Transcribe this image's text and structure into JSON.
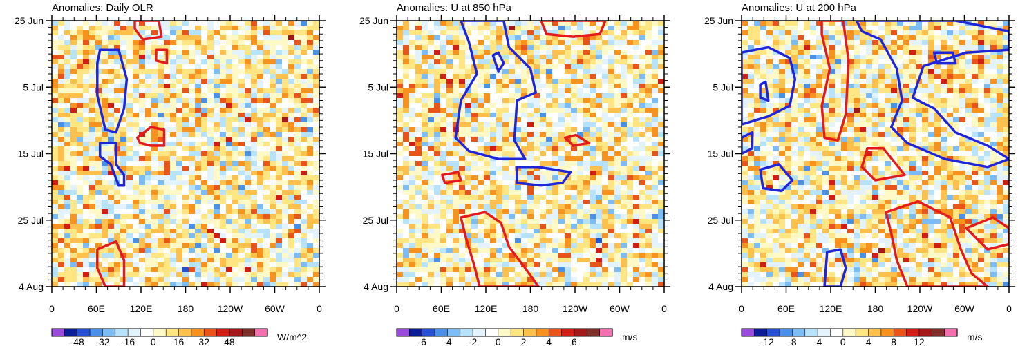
{
  "palette": [
    "#9b4bdc",
    "#0c1e96",
    "#2650d2",
    "#4a90e6",
    "#7cbcf4",
    "#b7e2fb",
    "#e3f3fd",
    "#ffffff",
    "#fff9c8",
    "#ffe682",
    "#fdc04c",
    "#f7921f",
    "#e8541a",
    "#d21d14",
    "#a31818",
    "#7e2f2a",
    "#f26fb0"
  ],
  "contour_colors": {
    "positive": "#e41a1c",
    "negative": "#1f26d9"
  },
  "panels": [
    {
      "title": "Anomalies: Daily OLR",
      "x_ticks": [
        "0",
        "60E",
        "120E",
        "180",
        "120W",
        "60W",
        "0"
      ],
      "y_ticks": [
        "25 Jun",
        "5 Jul",
        "15 Jul",
        "25 Jul",
        "4 Aug"
      ],
      "colorbar_labels": [
        "-48",
        "-32",
        "-16",
        "0",
        "16",
        "32",
        "48"
      ],
      "units": "W/m^2",
      "seed": 11,
      "neg_contours": [
        [
          [
            0.18,
            0.11
          ],
          [
            0.25,
            0.11
          ],
          [
            0.28,
            0.22
          ],
          [
            0.27,
            0.33
          ],
          [
            0.24,
            0.42
          ],
          [
            0.2,
            0.41
          ],
          [
            0.17,
            0.28
          ],
          [
            0.17,
            0.16
          ]
        ],
        [
          [
            0.18,
            0.46
          ],
          [
            0.24,
            0.46
          ],
          [
            0.24,
            0.54
          ],
          [
            0.27,
            0.58
          ],
          [
            0.27,
            0.62
          ],
          [
            0.25,
            0.62
          ],
          [
            0.22,
            0.54
          ],
          [
            0.18,
            0.51
          ]
        ]
      ],
      "pos_contours": [
        [
          [
            0.31,
            0.0
          ],
          [
            0.4,
            0.0
          ],
          [
            0.41,
            0.06
          ],
          [
            0.34,
            0.07
          ],
          [
            0.31,
            0.03
          ]
        ],
        [
          [
            0.39,
            0.11
          ],
          [
            0.43,
            0.11
          ],
          [
            0.43,
            0.16
          ],
          [
            0.39,
            0.15
          ]
        ],
        [
          [
            0.32,
            0.44
          ],
          [
            0.37,
            0.4
          ],
          [
            0.42,
            0.41
          ],
          [
            0.42,
            0.47
          ],
          [
            0.37,
            0.47
          ],
          [
            0.33,
            0.46
          ]
        ],
        [
          [
            0.17,
            0.86
          ],
          [
            0.24,
            0.83
          ],
          [
            0.27,
            0.9
          ],
          [
            0.27,
            1.0
          ],
          [
            0.2,
            1.0
          ],
          [
            0.17,
            0.93
          ]
        ]
      ]
    },
    {
      "title": "Anomalies: U at 850 hPa",
      "x_ticks": [
        "0",
        "60E",
        "120E",
        "180",
        "120W",
        "60W",
        "0"
      ],
      "y_ticks": [
        "25 Jun",
        "5 Jul",
        "15 Jul",
        "25 Jul",
        "4 Aug"
      ],
      "colorbar_labels": [
        "-6",
        "-4",
        "-2",
        "0",
        "2",
        "4",
        "6"
      ],
      "units": "m/s",
      "seed": 23,
      "neg_contours": [
        [
          [
            0.24,
            0.0
          ],
          [
            0.4,
            0.0
          ],
          [
            0.42,
            0.1
          ],
          [
            0.5,
            0.18
          ],
          [
            0.52,
            0.27
          ],
          [
            0.45,
            0.3
          ],
          [
            0.44,
            0.45
          ],
          [
            0.48,
            0.52
          ],
          [
            0.38,
            0.52
          ],
          [
            0.27,
            0.49
          ],
          [
            0.22,
            0.44
          ],
          [
            0.24,
            0.3
          ],
          [
            0.3,
            0.2
          ],
          [
            0.27,
            0.08
          ]
        ],
        [
          [
            0.36,
            0.13
          ],
          [
            0.38,
            0.12
          ],
          [
            0.4,
            0.16
          ],
          [
            0.38,
            0.19
          ]
        ],
        [
          [
            0.45,
            0.55
          ],
          [
            0.53,
            0.55
          ],
          [
            0.65,
            0.57
          ],
          [
            0.62,
            0.61
          ],
          [
            0.54,
            0.62
          ],
          [
            0.45,
            0.61
          ]
        ]
      ],
      "pos_contours": [
        [
          [
            0.54,
            0.0
          ],
          [
            0.78,
            0.0
          ],
          [
            0.76,
            0.05
          ],
          [
            0.66,
            0.06
          ],
          [
            0.56,
            0.05
          ]
        ],
        [
          [
            0.63,
            0.44
          ],
          [
            0.67,
            0.43
          ],
          [
            0.72,
            0.46
          ],
          [
            0.66,
            0.47
          ]
        ],
        [
          [
            0.17,
            0.58
          ],
          [
            0.23,
            0.57
          ],
          [
            0.24,
            0.6
          ],
          [
            0.18,
            0.61
          ]
        ],
        [
          [
            0.24,
            0.74
          ],
          [
            0.33,
            0.72
          ],
          [
            0.39,
            0.76
          ],
          [
            0.42,
            0.85
          ],
          [
            0.48,
            0.93
          ],
          [
            0.53,
            1.0
          ],
          [
            0.31,
            1.0
          ],
          [
            0.29,
            0.92
          ],
          [
            0.26,
            0.82
          ]
        ]
      ]
    },
    {
      "title": "Anomalies: U at 200 hPa",
      "x_ticks": [
        "0",
        "60E",
        "120E",
        "180",
        "120W",
        "60W",
        "0"
      ],
      "y_ticks": [
        "25 Jun",
        "5 Jul",
        "15 Jul",
        "25 Jul",
        "4 Aug"
      ],
      "colorbar_labels": [
        "-12",
        "-8",
        "-4",
        "0",
        "4",
        "8",
        "12"
      ],
      "units": "m/s",
      "seed": 41,
      "neg_contours": [
        [
          [
            0.0,
            0.12
          ],
          [
            0.1,
            0.1
          ],
          [
            0.18,
            0.14
          ],
          [
            0.2,
            0.22
          ],
          [
            0.18,
            0.32
          ],
          [
            0.1,
            0.36
          ],
          [
            0.0,
            0.39
          ]
        ],
        [
          [
            0.43,
            0.0
          ],
          [
            0.8,
            0.0
          ],
          [
            1.0,
            0.04
          ],
          [
            1.0,
            0.11
          ],
          [
            0.84,
            0.12
          ],
          [
            0.68,
            0.17
          ],
          [
            0.64,
            0.29
          ],
          [
            0.72,
            0.33
          ],
          [
            0.8,
            0.42
          ],
          [
            0.92,
            0.47
          ],
          [
            1.0,
            0.52
          ],
          [
            0.92,
            0.55
          ],
          [
            0.76,
            0.52
          ],
          [
            0.62,
            0.46
          ],
          [
            0.56,
            0.4
          ],
          [
            0.6,
            0.3
          ],
          [
            0.58,
            0.18
          ],
          [
            0.52,
            0.07
          ],
          [
            0.45,
            0.04
          ]
        ],
        [
          [
            0.07,
            0.24
          ],
          [
            0.09,
            0.23
          ],
          [
            0.1,
            0.3
          ],
          [
            0.07,
            0.29
          ]
        ],
        [
          [
            0.72,
            0.12
          ],
          [
            0.79,
            0.12
          ],
          [
            0.8,
            0.16
          ],
          [
            0.73,
            0.16
          ]
        ],
        [
          [
            0.0,
            0.44
          ],
          [
            0.04,
            0.42
          ],
          [
            0.04,
            0.48
          ],
          [
            0.0,
            0.5
          ]
        ],
        [
          [
            0.07,
            0.56
          ],
          [
            0.14,
            0.54
          ],
          [
            0.19,
            0.6
          ],
          [
            0.15,
            0.64
          ],
          [
            0.08,
            0.63
          ]
        ],
        [
          [
            0.32,
            0.87
          ],
          [
            0.37,
            0.86
          ],
          [
            0.39,
            0.93
          ],
          [
            0.37,
            1.0
          ],
          [
            0.31,
            1.0
          ]
        ]
      ],
      "pos_contours": [
        [
          [
            0.3,
            0.0
          ],
          [
            0.38,
            0.0
          ],
          [
            0.4,
            0.15
          ],
          [
            0.39,
            0.35
          ],
          [
            0.36,
            0.45
          ],
          [
            0.31,
            0.44
          ],
          [
            0.3,
            0.32
          ],
          [
            0.33,
            0.18
          ],
          [
            0.3,
            0.05
          ]
        ],
        [
          [
            0.47,
            0.48
          ],
          [
            0.53,
            0.48
          ],
          [
            0.61,
            0.58
          ],
          [
            0.5,
            0.6
          ],
          [
            0.45,
            0.55
          ]
        ],
        [
          [
            0.54,
            0.72
          ],
          [
            0.66,
            0.68
          ],
          [
            0.78,
            0.74
          ],
          [
            0.82,
            0.86
          ],
          [
            0.86,
            0.95
          ],
          [
            0.92,
            1.0
          ],
          [
            0.62,
            1.0
          ],
          [
            0.58,
            0.9
          ],
          [
            0.56,
            0.8
          ]
        ],
        [
          [
            0.84,
            0.78
          ],
          [
            0.94,
            0.74
          ],
          [
            1.0,
            0.78
          ],
          [
            1.0,
            0.84
          ],
          [
            0.92,
            0.86
          ]
        ]
      ]
    }
  ]
}
